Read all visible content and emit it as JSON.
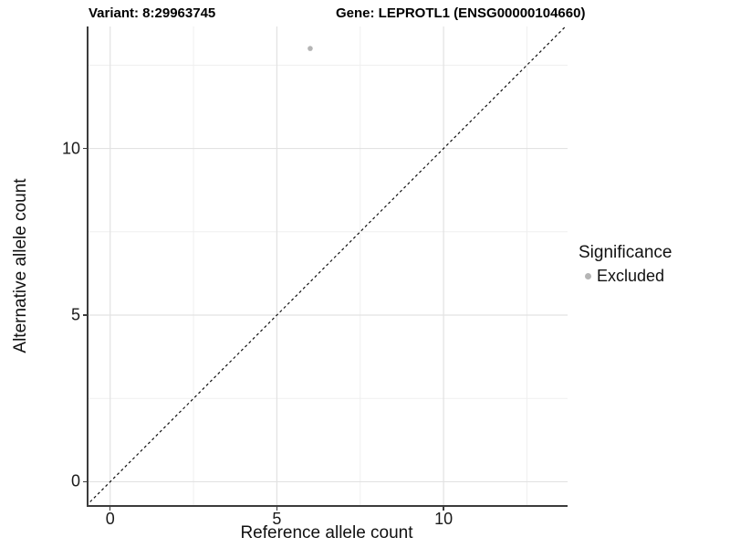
{
  "chart_data": {
    "type": "scatter",
    "titles": {
      "variant": "Variant: 8:29963745",
      "gene": "Gene: LEPROTL1 (ENSG00000104660)"
    },
    "xlabel": "Reference allele count",
    "ylabel": "Alternative allele count",
    "xlim": [
      -0.65,
      13.72
    ],
    "ylim": [
      -0.7,
      13.66
    ],
    "x_ticks": [
      0,
      5,
      10
    ],
    "y_ticks": [
      0,
      5,
      10
    ],
    "x_minor_gridlines": [
      2.5,
      7.5,
      12.5
    ],
    "y_minor_gridlines": [
      2.5,
      7.5,
      12.5
    ],
    "grid": "major+minor",
    "identity_line": {
      "slope": 1,
      "intercept": 0,
      "style": "dashed",
      "color": "#111111"
    },
    "series": [
      {
        "name": "Excluded",
        "color": "#b5b5b5",
        "points": [
          [
            6,
            13
          ]
        ]
      }
    ],
    "legend": {
      "title": "Significance",
      "position": "right",
      "items": [
        {
          "label": "Excluded",
          "color": "#b5b5b5",
          "marker": "circle"
        }
      ]
    },
    "colors": {
      "grid_major": "#e2e2e2",
      "grid_minor": "#efefef",
      "axis_line": "#3c3c3c",
      "point": "#b5b5b5",
      "dashed_line": "#111111"
    }
  }
}
